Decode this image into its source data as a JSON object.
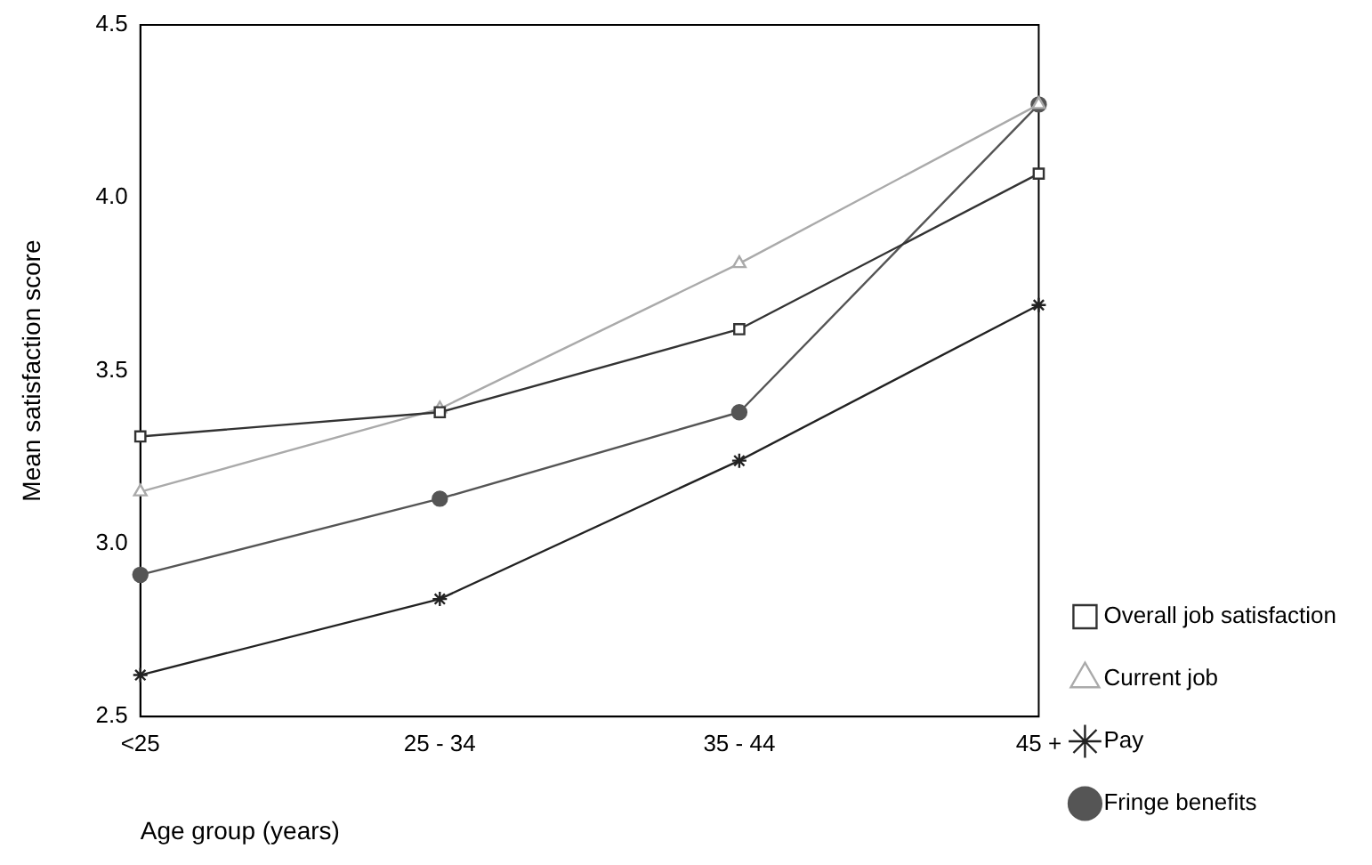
{
  "chart_data": {
    "type": "line",
    "xlabel": "Age group (years)",
    "ylabel": "Mean satisfaction score",
    "categories": [
      "<25",
      "25 - 34",
      "35 - 44",
      "45 +"
    ],
    "series": [
      {
        "name": "Overall job satisfaction",
        "color": "#333333",
        "marker": "square",
        "values": [
          3.31,
          3.38,
          3.62,
          4.07
        ]
      },
      {
        "name": "Current job",
        "color": "#aaaaaa",
        "marker": "triangle",
        "values": [
          3.15,
          3.39,
          3.81,
          4.27
        ]
      },
      {
        "name": "Pay",
        "color": "#222222",
        "marker": "cross",
        "values": [
          2.62,
          2.84,
          3.24,
          3.69
        ]
      },
      {
        "name": "Fringe benefits",
        "color": "#555555",
        "marker": "circle",
        "values": [
          2.91,
          3.13,
          3.38,
          4.27
        ]
      }
    ],
    "ylim": [
      2.5,
      4.5
    ],
    "yticks": [
      2.5,
      {
        "value": 3,
        "label": "3.0"
      },
      3.5,
      {
        "value": 4,
        "label": "4.0"
      },
      4.5
    ],
    "grid": false,
    "legend": "right",
    "line_style": "solid"
  }
}
